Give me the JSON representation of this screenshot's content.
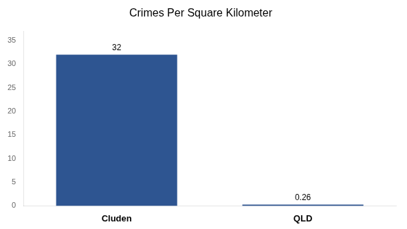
{
  "chart_data": {
    "type": "bar",
    "title": "Crimes Per Square Kilometer",
    "categories": [
      "Cluden",
      "QLD"
    ],
    "values": [
      32,
      0.26
    ],
    "color": "#2e5591",
    "ylim": [
      0,
      37
    ],
    "yticks": [
      0,
      5,
      10,
      15,
      20,
      25,
      30,
      35
    ],
    "grid": false,
    "data_labels": true
  }
}
